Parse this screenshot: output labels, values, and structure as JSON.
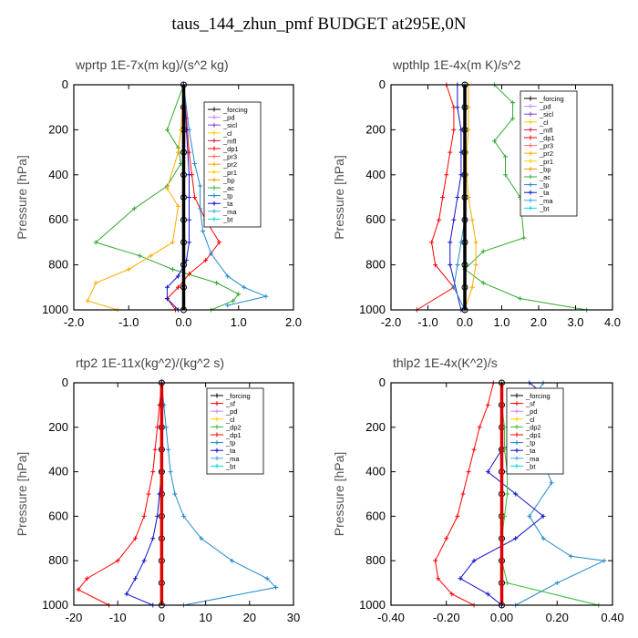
{
  "title": "taus_144_zhun_pmf  BUDGET at295E,0N",
  "colors": {
    "_forcing": "#000000",
    "_pd": "#cc88ff",
    "_sicl": "#8844cc",
    "_cl": "#ffcc00",
    "_mfl": "#cc2244",
    "_dp1": "#ff0000",
    "_dp2": "#33bb33",
    "_pr3": "#ff6666",
    "_pr2": "#ffaa00",
    "_pr1": "#ffcc00",
    "_bp": "#ff9900",
    "_ac": "#33aa33",
    "_tp": "#2288cc",
    "_ta": "#1111cc",
    "_ma": "#44aadd",
    "_bt": "#00dddd",
    "_sf": "#ff0000"
  },
  "chart_data": [
    {
      "type": "line",
      "title": "wprtp",
      "units": "1E-7x(m kg)/(s^2 kg)",
      "ylabel": "Pressure [hPa]",
      "xlim": [
        -2.0,
        2.0
      ],
      "xticks": [
        "-2.0",
        "-1.0",
        "0.0",
        "1.0",
        "2.0"
      ],
      "ylim": [
        1000,
        0
      ],
      "yticks": [
        "0",
        "200",
        "400",
        "600",
        "800",
        "1000"
      ],
      "legend": [
        "_forcing",
        "_pd",
        "_sicl",
        "_cl",
        "_mfl",
        "_dp1",
        "_pr3",
        "_pr2",
        "_pr1",
        "_bp",
        "_ac",
        "_tp",
        "_ta",
        "_ma",
        "_bt"
      ],
      "series": [
        {
          "name": "_forcing",
          "x": [
            0,
            0,
            0,
            0,
            0,
            0,
            0,
            0,
            0,
            0,
            0
          ],
          "y": [
            0,
            100,
            200,
            300,
            400,
            500,
            600,
            700,
            800,
            900,
            1000
          ]
        },
        {
          "name": "_dp1",
          "x": [
            0,
            0.05,
            0.1,
            0.15,
            0.2,
            0.4,
            0.65,
            0.4,
            0.1,
            -0.1,
            -0.3,
            -0.15
          ],
          "y": [
            0,
            150,
            300,
            400,
            500,
            600,
            700,
            780,
            840,
            900,
            950,
            1000
          ]
        },
        {
          "name": "_ac",
          "x": [
            0,
            -0.3,
            -0.1,
            -0.05,
            -0.3,
            -0.9,
            -1.6,
            -0.8,
            -0.2,
            0.6,
            1.0,
            0.9,
            0.5
          ],
          "y": [
            0,
            200,
            280,
            350,
            450,
            550,
            700,
            760,
            820,
            880,
            930,
            960,
            1000
          ]
        },
        {
          "name": "_pr2",
          "x": [
            0,
            -0.05,
            -0.1,
            -0.3,
            -0.1,
            -0.2,
            -0.6,
            -1.0,
            -1.6,
            -1.75,
            -1.2
          ],
          "y": [
            0,
            200,
            300,
            460,
            540,
            700,
            760,
            820,
            880,
            960,
            1000
          ]
        },
        {
          "name": "_tp",
          "x": [
            0,
            0.1,
            0.2,
            0.3,
            0.3,
            0.35,
            0.5,
            0.8,
            1.1,
            1.5,
            0.8
          ],
          "y": [
            0,
            200,
            350,
            450,
            550,
            650,
            750,
            850,
            900,
            940,
            980
          ]
        },
        {
          "name": "_ta",
          "x": [
            0,
            0.05,
            0.1,
            0.1,
            0.1,
            0.1,
            0.05,
            -0.1,
            -0.3,
            -0.3,
            -0.1
          ],
          "y": [
            0,
            200,
            400,
            500,
            600,
            700,
            780,
            850,
            900,
            950,
            1000
          ]
        }
      ]
    },
    {
      "type": "line",
      "title": "wpthlp",
      "units": "1E-4x(m K)/s^2",
      "ylabel": "Pressure [hPa]",
      "xlim": [
        -2.0,
        4.0
      ],
      "xticks": [
        "-2.0",
        "-1.0",
        "0.0",
        "1.0",
        "2.0",
        "3.0",
        "4.0"
      ],
      "ylim": [
        1000,
        0
      ],
      "yticks": [
        "0",
        "200",
        "400",
        "600",
        "800",
        "1000"
      ],
      "legend": [
        "_forcing",
        "_pd",
        "_sicl",
        "_cl",
        "_mfl",
        "_dp1",
        "_pr3",
        "_pr2",
        "_pr1",
        "_bp",
        "_ac",
        "_tp",
        "_ta",
        "_ma",
        "_bt"
      ],
      "series": [
        {
          "name": "_forcing",
          "x": [
            0,
            0,
            0,
            0,
            0,
            0,
            0,
            0,
            0,
            0,
            0
          ],
          "y": [
            0,
            100,
            200,
            300,
            400,
            500,
            600,
            700,
            800,
            900,
            1000
          ]
        },
        {
          "name": "_ac",
          "x": [
            0.8,
            1.3,
            1.3,
            0.8,
            1.1,
            1.1,
            1.5,
            1.6,
            0.5,
            0,
            0.5,
            1.5,
            3.3
          ],
          "y": [
            0,
            80,
            150,
            250,
            320,
            400,
            500,
            680,
            740,
            820,
            880,
            950,
            1000
          ]
        },
        {
          "name": "_dp1",
          "x": [
            -0.5,
            -0.3,
            -0.3,
            -0.4,
            -0.5,
            -0.6,
            -0.7,
            -0.9,
            -0.8,
            -0.3,
            -1.3
          ],
          "y": [
            0,
            100,
            200,
            300,
            400,
            500,
            600,
            700,
            800,
            900,
            1000
          ]
        },
        {
          "name": "_ta",
          "x": [
            -0.2,
            -0.2,
            -0.1,
            -0.1,
            -0.1,
            -0.2,
            -0.3,
            -0.4,
            -0.4,
            -0.1
          ],
          "y": [
            0,
            100,
            200,
            300,
            400,
            500,
            600,
            700,
            800,
            1000
          ]
        },
        {
          "name": "_pr2",
          "x": [
            0.1,
            0.1,
            0.1,
            0.05,
            0.05,
            0.1,
            0.2,
            0.3,
            0.3,
            0.2,
            0
          ],
          "y": [
            0,
            100,
            200,
            300,
            400,
            500,
            600,
            700,
            800,
            900,
            1000
          ]
        },
        {
          "name": "_tp",
          "x": [
            0,
            0,
            0,
            0,
            0,
            0,
            0,
            -0.1,
            -0.2,
            -0.3,
            0
          ],
          "y": [
            0,
            100,
            200,
            300,
            400,
            500,
            600,
            700,
            800,
            900,
            1000
          ]
        }
      ]
    },
    {
      "type": "line",
      "title": "rtp2",
      "units": "1E-11x(kg^2)/(kg^2 s)",
      "ylabel": "Pressure [hPa]",
      "xlim": [
        -20,
        30
      ],
      "xticks": [
        "-20",
        "-10",
        "0",
        "10",
        "20",
        "30"
      ],
      "ylim": [
        1000,
        0
      ],
      "yticks": [
        "0",
        "200",
        "400",
        "600",
        "800",
        "1000"
      ],
      "legend": [
        "_forcing",
        "_sf",
        "_pd",
        "_cl",
        "_dp2",
        "_dp1",
        "_tp",
        "_ta",
        "_ma",
        "_bt"
      ],
      "series": [
        {
          "name": "_forcing",
          "x": [
            0,
            0,
            0,
            0,
            0,
            0,
            0,
            0,
            0,
            0,
            0
          ],
          "y": [
            0,
            100,
            200,
            300,
            400,
            500,
            600,
            700,
            800,
            900,
            1000
          ]
        },
        {
          "name": "_dp1",
          "x": [
            0,
            -0.5,
            -1,
            -1.5,
            -2,
            -3,
            -4,
            -6,
            -10,
            -17,
            -19,
            -12
          ],
          "y": [
            0,
            100,
            200,
            300,
            400,
            500,
            600,
            700,
            800,
            880,
            930,
            1000
          ]
        },
        {
          "name": "_tp",
          "x": [
            0,
            0.5,
            1,
            1.5,
            2,
            3,
            5,
            9,
            16,
            24,
            26,
            5
          ],
          "y": [
            0,
            100,
            200,
            300,
            400,
            500,
            600,
            700,
            800,
            880,
            920,
            1000
          ]
        },
        {
          "name": "_ta",
          "x": [
            0,
            0,
            0,
            0,
            0,
            -0.5,
            -1,
            -2,
            -4,
            -6,
            -8,
            -2
          ],
          "y": [
            0,
            100,
            200,
            300,
            400,
            500,
            600,
            700,
            800,
            880,
            950,
            1000
          ]
        }
      ]
    },
    {
      "type": "line",
      "title": "thlp2",
      "units": "1E-4x(K^2)/s",
      "ylabel": "Pressure [hPa]",
      "xlim": [
        -0.4,
        0.4
      ],
      "xticks": [
        "-0.40",
        "-0.20",
        "0.00",
        "0.20",
        "0.40"
      ],
      "ylim": [
        1000,
        0
      ],
      "yticks": [
        "0",
        "200",
        "400",
        "600",
        "800",
        "1000"
      ],
      "legend": [
        "_forcing",
        "_sf",
        "_pd",
        "_cl",
        "_dp2",
        "_dp1",
        "_tp",
        "_ta",
        "_ma",
        "_bt"
      ],
      "series": [
        {
          "name": "_forcing",
          "x": [
            0,
            0,
            0,
            0,
            0,
            0,
            0,
            0,
            0,
            0,
            0
          ],
          "y": [
            0,
            100,
            200,
            300,
            400,
            500,
            600,
            700,
            800,
            900,
            1000
          ]
        },
        {
          "name": "_dp1",
          "x": [
            -0.03,
            -0.05,
            -0.08,
            -0.1,
            -0.12,
            -0.14,
            -0.16,
            -0.2,
            -0.24,
            -0.23,
            -0.18,
            -0.1
          ],
          "y": [
            0,
            100,
            200,
            300,
            400,
            500,
            600,
            700,
            800,
            880,
            950,
            1000
          ]
        },
        {
          "name": "_tp",
          "x": [
            0.15,
            0.1,
            0.13,
            0.2,
            0.15,
            0.18,
            0.1,
            0.15,
            0.25,
            0.37,
            0.2,
            0.05
          ],
          "y": [
            0,
            100,
            150,
            250,
            350,
            450,
            600,
            700,
            780,
            800,
            900,
            1000
          ]
        },
        {
          "name": "_ta",
          "x": [
            0.1,
            0.2,
            0.15,
            0.0,
            -0.05,
            0.05,
            0.15,
            0.05,
            -0.1,
            -0.15,
            -0.05,
            0.0
          ],
          "y": [
            0,
            100,
            200,
            300,
            400,
            500,
            600,
            700,
            800,
            880,
            950,
            1000
          ]
        },
        {
          "name": "_dp2",
          "x": [
            0,
            0,
            0.01,
            0.01,
            0.02,
            0.02,
            0.01,
            0,
            0,
            0.02,
            0.35
          ],
          "y": [
            0,
            100,
            200,
            300,
            400,
            500,
            600,
            700,
            800,
            900,
            1000
          ]
        }
      ]
    }
  ]
}
